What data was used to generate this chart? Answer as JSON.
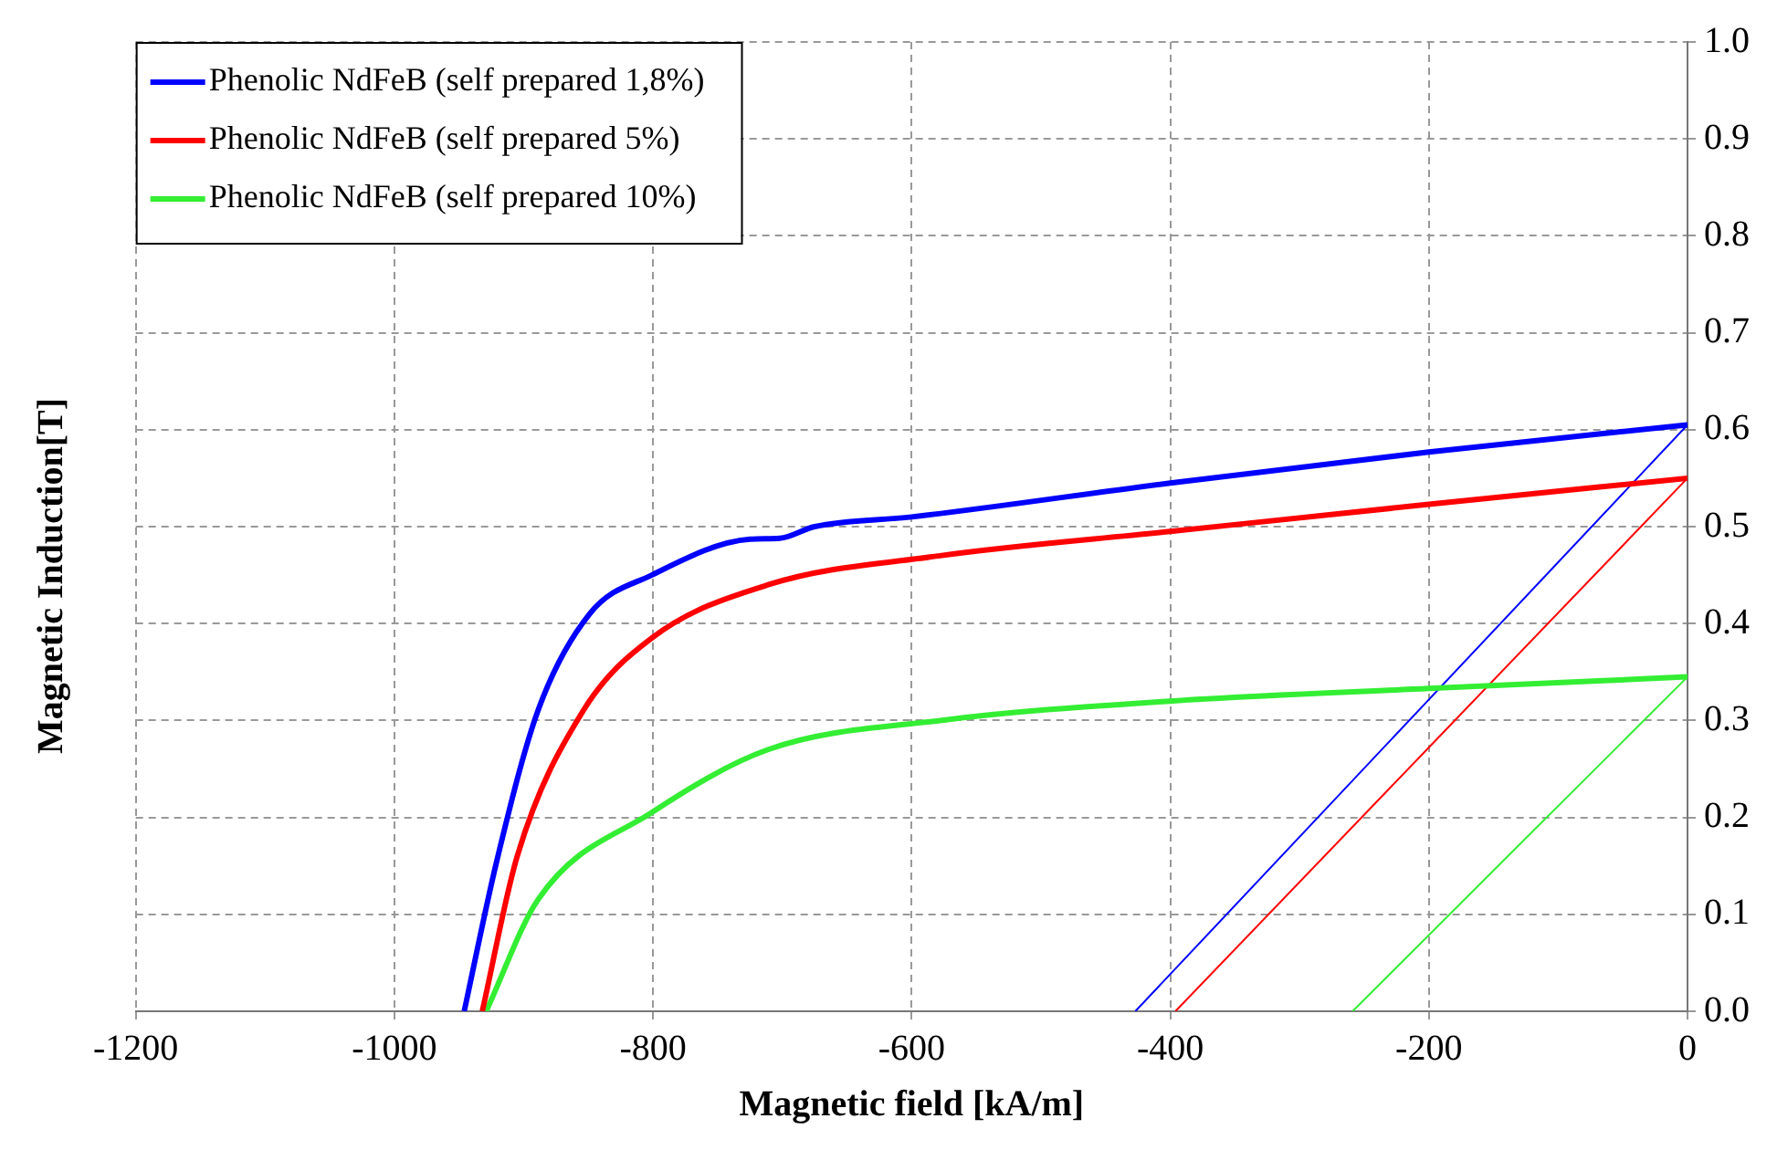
{
  "chart_data": {
    "type": "line",
    "xlabel": "Magnetic field [kA/m]",
    "ylabel": "Magnetic Induction[T]",
    "xlim": [
      -1200,
      0
    ],
    "xticks": [
      -1200,
      -1000,
      -800,
      -600,
      -400,
      -200,
      0
    ],
    "ylim": [
      0,
      1
    ],
    "yticks": [
      {
        "value": 0,
        "label": "0.0"
      },
      0.1,
      0.2,
      0.3,
      0.4,
      0.5,
      0.6,
      0.7,
      0.8,
      0.9,
      {
        "value": 1,
        "label": "1.0"
      }
    ],
    "grid": true,
    "legend": "top left",
    "line_style": "solid",
    "marker": "none",
    "series": [
      {
        "name": "Phenolic NdFeB (self prepared 1,8%)",
        "color": "#0000ff",
        "x": [
          -946,
          -921,
          -889,
          -849,
          -801,
          -725,
          -702,
          -675,
          -600,
          -400,
          -200,
          0
        ],
        "values": [
          0,
          0.154,
          0.31,
          0.41,
          0.45,
          0.487,
          0.488,
          0.5,
          0.51,
          0.545,
          0.577,
          0.605
        ]
      },
      {
        "name": "Phenolic NdFeB (self prepared 5%)",
        "color": "#ff0000",
        "x": [
          -932,
          -905,
          -854,
          -801,
          -711,
          -578,
          -400,
          -200,
          0
        ],
        "values": [
          0,
          0.16,
          0.31,
          0.385,
          0.44,
          0.47,
          0.495,
          0.523,
          0.55
        ]
      },
      {
        "name": "Phenolic NdFeB (self prepared 10%)",
        "color": "#33ee33",
        "x": [
          -929,
          -889,
          -801,
          -711,
          -578,
          -400,
          -200,
          0
        ],
        "values": [
          0,
          0.115,
          0.205,
          0.27,
          0.3,
          0.32,
          0.333,
          0.345
        ]
      },
      {
        "color": "#0000ff",
        "x": [
          -427,
          0
        ],
        "values": [
          0,
          0.605
        ]
      },
      {
        "color": "#ff0000",
        "x": [
          -396,
          0
        ],
        "values": [
          0,
          0.55
        ]
      },
      {
        "color": "#33ee33",
        "x": [
          -259,
          0
        ],
        "values": [
          0,
          0.345
        ]
      }
    ]
  }
}
